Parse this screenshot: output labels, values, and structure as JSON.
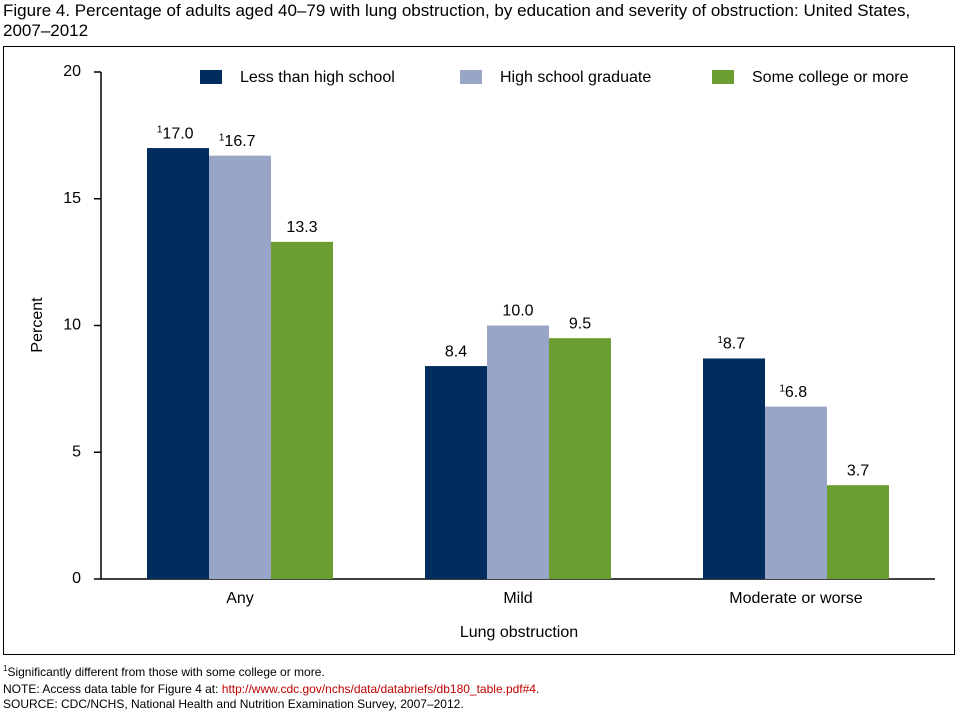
{
  "chart_data": {
    "type": "bar",
    "title": "Figure 4. Percentage of adults aged 40–79 with lung obstruction, by education and severity of obstruction: United States, 2007–2012",
    "x_label": "Lung obstruction",
    "y_label": "Percent",
    "categories": [
      "Any",
      "Mild",
      "Moderate or worse"
    ],
    "series": [
      {
        "name": "Less than high school",
        "color": "#002c5e",
        "values": [
          17.0,
          8.4,
          8.7
        ],
        "value_labels": [
          "17.0",
          "8.4",
          "8.7"
        ],
        "value_label_marks": [
          "1",
          null,
          "1"
        ]
      },
      {
        "name": "High school graduate",
        "color": "#98a5c6",
        "values": [
          16.7,
          10.0,
          6.8
        ],
        "value_labels": [
          "16.7",
          "10.0",
          "6.8"
        ],
        "value_label_marks": [
          "1",
          null,
          "1"
        ]
      },
      {
        "name": "Some college or more",
        "color": "#6b9d30",
        "values": [
          13.3,
          9.5,
          3.7
        ],
        "value_labels": [
          "13.3",
          "9.5",
          "3.7"
        ],
        "value_label_marks": [
          null,
          null,
          null
        ]
      }
    ],
    "ylim": [
      0,
      20
    ],
    "yticks": [
      0,
      5,
      10,
      15,
      20
    ],
    "grid": false,
    "legend": "top",
    "footnote": {
      "mark": "1",
      "text": "Significantly different from those with some college or more."
    },
    "note": {
      "prefix": "NOTE: Access data table for Figure 4 at: ",
      "link": "http://www.cdc.gov/nchs/data/databriefs/db180_table.pdf#4",
      "suffix": "."
    },
    "source": "SOURCE: CDC/NCHS, National Health and Nutrition Examination Survey, 2007–2012."
  }
}
